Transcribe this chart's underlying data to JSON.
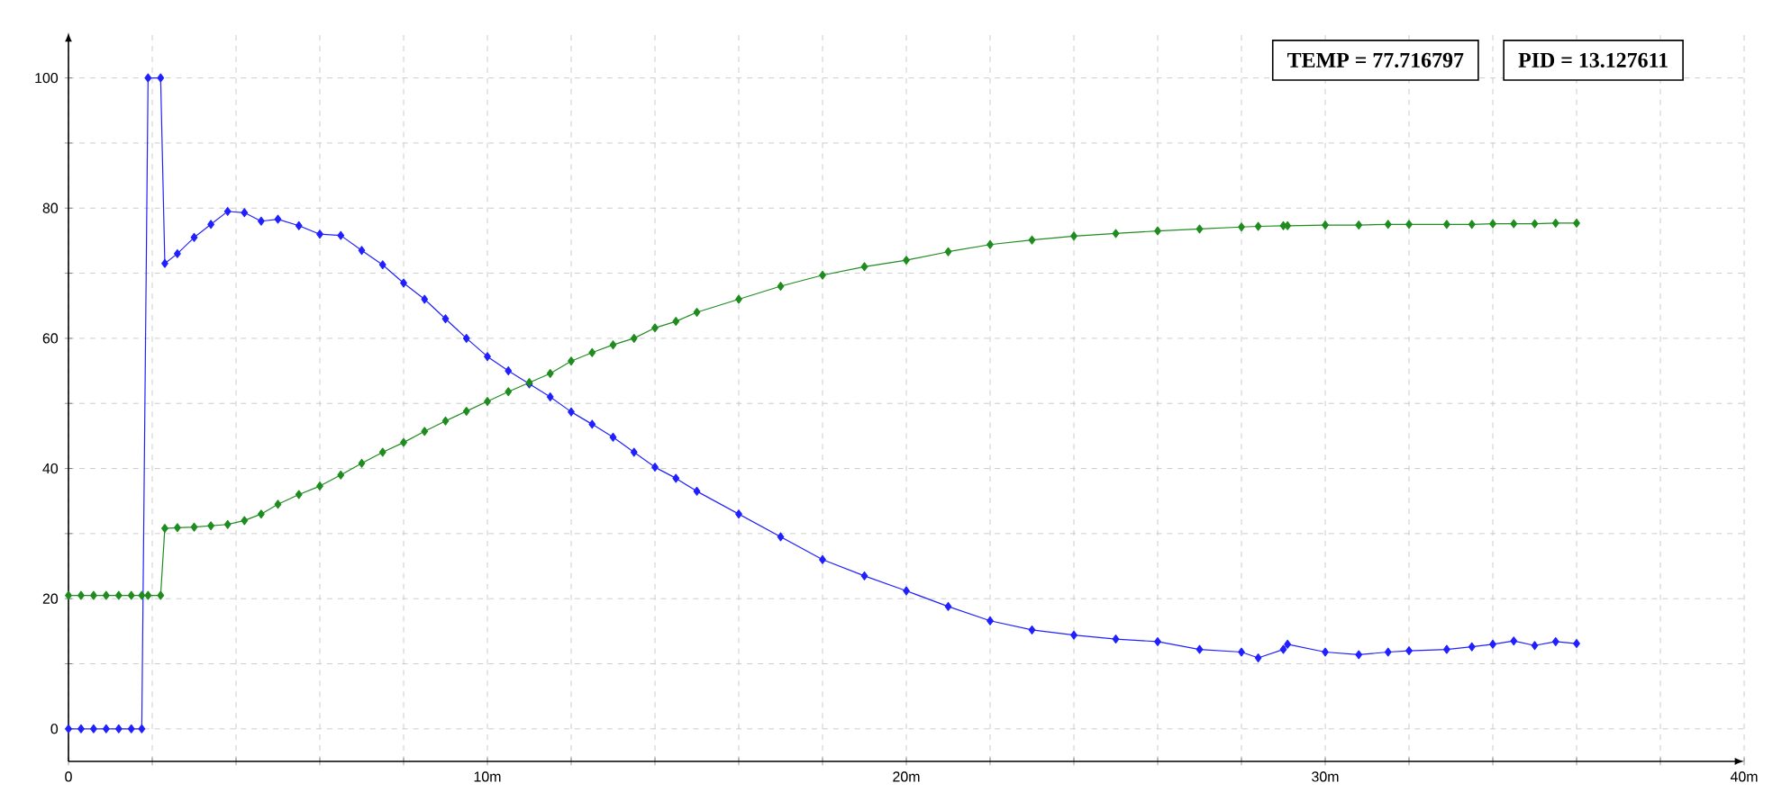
{
  "chart_data": {
    "type": "line",
    "x": [
      0,
      0.3,
      0.6,
      0.9,
      1.2,
      1.5,
      1.75,
      1.9,
      2.2,
      2.3,
      2.6,
      3.0,
      3.4,
      3.8,
      4.2,
      4.6,
      5.0,
      5.5,
      6.0,
      6.5,
      7.0,
      7.5,
      8.0,
      8.5,
      9.0,
      9.5,
      10,
      10.5,
      11,
      11.5,
      12,
      12.5,
      13,
      13.5,
      14,
      14.5,
      15,
      16,
      17,
      18,
      19,
      20,
      21,
      22,
      23,
      24,
      25,
      26,
      27,
      28,
      28.4,
      29,
      29.1,
      30,
      30.8,
      31.5,
      32,
      32.9,
      33.5,
      34,
      34.5,
      35,
      35.5,
      36
    ],
    "series": [
      {
        "color": "#2020ff",
        "values": [
          0,
          0,
          0,
          0,
          0,
          0,
          0,
          100,
          100,
          71.5,
          73,
          75.5,
          77.5,
          79.5,
          79.3,
          78,
          78.3,
          77.3,
          76,
          75.8,
          73.5,
          71.3,
          68.5,
          66,
          63,
          60,
          57.2,
          55,
          53,
          51,
          48.7,
          46.8,
          44.8,
          42.5,
          40.2,
          38.5,
          36.5,
          33,
          29.5,
          26,
          23.5,
          21.2,
          18.8,
          16.6,
          15.2,
          14.4,
          13.8,
          13.4,
          12.2,
          11.8,
          10.9,
          12.2,
          13,
          11.8,
          11.4,
          11.8,
          12,
          12.2,
          12.6,
          13,
          13.5,
          12.8,
          13.4,
          13.1
        ]
      },
      {
        "color": "#1e8c1e",
        "values": [
          20.5,
          20.5,
          20.5,
          20.5,
          20.5,
          20.5,
          20.5,
          20.5,
          20.5,
          30.8,
          30.9,
          31,
          31.2,
          31.4,
          32,
          33,
          34.5,
          36,
          37.3,
          39,
          40.8,
          42.5,
          44,
          45.7,
          47.3,
          48.8,
          50.3,
          51.8,
          53.2,
          54.6,
          56.5,
          57.8,
          59,
          60,
          61.6,
          62.6,
          64,
          66,
          68,
          69.7,
          71,
          72,
          73.3,
          74.4,
          75.1,
          75.7,
          76.1,
          76.5,
          76.8,
          77.1,
          77.2,
          77.3,
          77.3,
          77.4,
          77.4,
          77.5,
          77.5,
          77.5,
          77.5,
          77.6,
          77.6,
          77.6,
          77.7,
          77.7
        ]
      }
    ],
    "xlim": [
      0,
      40
    ],
    "ylim": [
      -5,
      107
    ],
    "xticks": [
      0,
      {
        "value": 2,
        "label": null
      },
      {
        "value": 4,
        "label": null
      },
      {
        "value": 6,
        "label": null
      },
      {
        "value": 8,
        "label": null
      },
      {
        "value": 10,
        "label": "10m"
      },
      {
        "value": 12,
        "label": null
      },
      {
        "value": 14,
        "label": null
      },
      {
        "value": 16,
        "label": null
      },
      {
        "value": 18,
        "label": null
      },
      {
        "value": 20,
        "label": "20m"
      },
      {
        "value": 22,
        "label": null
      },
      {
        "value": 24,
        "label": null
      },
      {
        "value": 26,
        "label": null
      },
      {
        "value": 28,
        "label": null
      },
      {
        "value": 30,
        "label": "30m"
      },
      {
        "value": 32,
        "label": null
      },
      {
        "value": 34,
        "label": null
      },
      {
        "value": 36,
        "label": null
      },
      {
        "value": 38,
        "label": null
      },
      {
        "value": 40,
        "label": "40m"
      }
    ],
    "yticks": [
      0,
      {
        "value": 10,
        "label": null
      },
      20,
      {
        "value": 30,
        "label": null
      },
      40,
      {
        "value": 50,
        "label": null
      },
      60,
      {
        "value": 70,
        "label": null
      },
      80,
      {
        "value": 90,
        "label": null
      },
      100
    ],
    "grid": true,
    "marker": "diamond",
    "line_style": "solid",
    "annotations": [
      "TEMP = 77.716797",
      "PID = 13.127611"
    ]
  }
}
